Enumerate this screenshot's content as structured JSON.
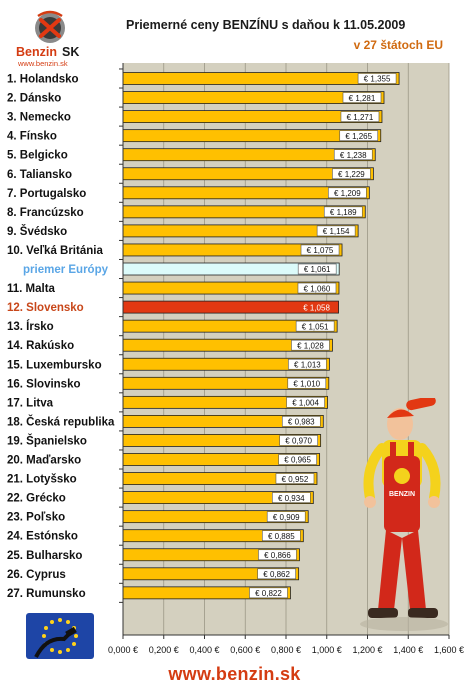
{
  "header": {
    "logo_text_main": "Benzin",
    "logo_text_suffix": "SK",
    "logo_url": "www.benzin.sk",
    "title": "Priemerné ceny BENZÍNU s daňou k 11.05.2009",
    "subtitle": "v 27 štátoch EU"
  },
  "footer": {
    "url": "www.benzin.sk"
  },
  "mascot": {
    "overalls_text": "BENZIN"
  },
  "colors": {
    "bar_default": "#ffc000",
    "bar_average": "#dcfbfa",
    "bar_highlight": "#e23812",
    "plot_background": "#d4d0bf",
    "label_default": "#111111",
    "label_average": "#5aa6e6",
    "label_highlight": "#c8471a"
  },
  "chart_data": {
    "type": "bar",
    "orientation": "horizontal",
    "title": "Priemerné ceny BENZÍNU s daňou k 11.05.2009",
    "subtitle": "v 27 štátoch EU",
    "xlabel": "",
    "ylabel": "",
    "xlim": [
      0,
      1.6
    ],
    "grid": true,
    "legend": "none",
    "x_ticks": [
      "0,000 €",
      "0,200 €",
      "0,400 €",
      "0,600 €",
      "0,800 €",
      "1,000 €",
      "1,200 €",
      "1,400 €",
      "1,600 €"
    ],
    "categories": [
      "1. Holandsko",
      "2. Dánsko",
      "3. Nemecko",
      "4. Fínsko",
      "5. Belgicko",
      "6. Taliansko",
      "7. Portugalsko",
      "8. Francúzsko",
      "9. Švédsko",
      "10. Veľká Británia",
      "priemer Európy",
      "11. Malta",
      "12. Slovensko",
      "13. Írsko",
      "14. Rakúsko",
      "15. Luxembursko",
      "16. Slovinsko",
      "17. Litva",
      "18. Česká republika",
      "19. Španielsko",
      "20. Maďarsko",
      "21. Lotyšsko",
      "22. Grécko",
      "23. Poľsko",
      "24. Estónsko",
      "25. Bulharsko",
      "26. Cyprus",
      "27. Rumunsko"
    ],
    "values": [
      1.355,
      1.281,
      1.271,
      1.265,
      1.238,
      1.229,
      1.209,
      1.189,
      1.154,
      1.075,
      1.061,
      1.06,
      1.058,
      1.051,
      1.028,
      1.013,
      1.01,
      1.004,
      0.983,
      0.97,
      0.965,
      0.952,
      0.934,
      0.909,
      0.885,
      0.866,
      0.862,
      0.822
    ],
    "value_labels": [
      "€ 1,355",
      "€ 1,281",
      "€ 1,271",
      "€ 1,265",
      "€ 1,238",
      "€ 1,229",
      "€ 1,209",
      "€ 1,189",
      "€ 1,154",
      "€ 1,075",
      "€ 1,061",
      "€ 1,060",
      "€ 1,058",
      "€ 1,051",
      "€ 1,028",
      "€ 1,013",
      "€ 1,010",
      "€ 1,004",
      "€ 0,983",
      "€ 0,970",
      "€ 0,965",
      "€ 0,952",
      "€ 0,934",
      "€ 0,909",
      "€ 0,885",
      "€ 0,866",
      "€ 0,862",
      "€ 0,822"
    ],
    "average_index": 10,
    "highlight_index": 12
  }
}
